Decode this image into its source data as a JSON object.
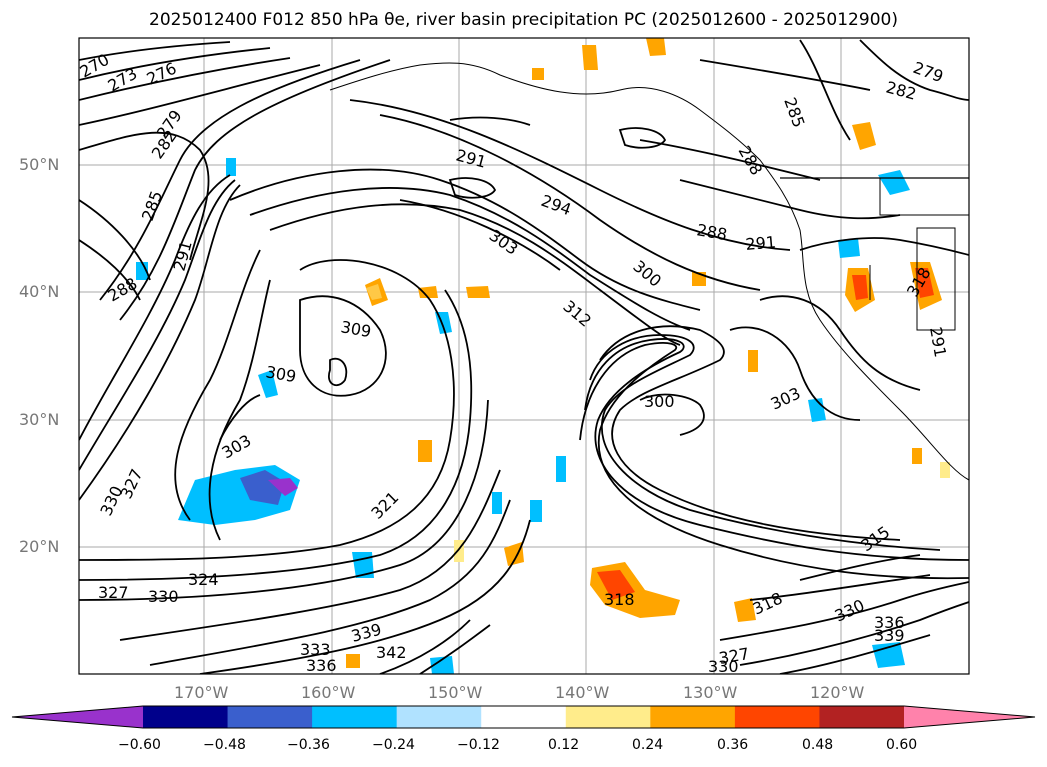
{
  "title": "2025012400 F012 850 hPa θe, river basin precipitation PC (2025012600 - 2025012900)",
  "lat_labels": [
    "50°N",
    "40°N",
    "30°N",
    "20°N"
  ],
  "lon_labels": [
    "170°W",
    "160°W",
    "150°W",
    "140°W",
    "130°W",
    "120°W"
  ],
  "contour_labels": [
    "270",
    "273",
    "276",
    "279",
    "282",
    "285",
    "291",
    "288",
    "309",
    "309",
    "303",
    "330",
    "327",
    "324",
    "330",
    "327",
    "333",
    "336",
    "339",
    "342",
    "321",
    "291",
    "294",
    "303",
    "300",
    "312",
    "300",
    "288",
    "291",
    "282",
    "279",
    "285",
    "288",
    "303",
    "318",
    "318",
    "315",
    "330",
    "336",
    "339",
    "327",
    "330",
    "318",
    "291"
  ],
  "colorbar": {
    "ticks": [
      "−0.60",
      "−0.48",
      "−0.36",
      "−0.24",
      "−0.12",
      "0.12",
      "0.24",
      "0.36",
      "0.48",
      "0.60"
    ],
    "colors": [
      "#9932cc",
      "#00008b",
      "#3a5fcd",
      "#00bfff",
      "#b0e2ff",
      "#ffffff",
      "#ffec8b",
      "#ffa500",
      "#ff4500",
      "#b22222",
      "#ff82ab"
    ]
  }
}
